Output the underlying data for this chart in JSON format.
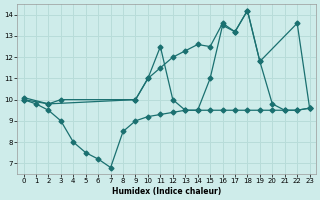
{
  "xlabel": "Humidex (Indice chaleur)",
  "bg_color": "#ceecea",
  "grid_color": "#b8dcd9",
  "line_color": "#1a7070",
  "ylim": [
    6.5,
    14.5
  ],
  "xlim": [
    -0.5,
    23.5
  ],
  "yticks": [
    7,
    8,
    9,
    10,
    11,
    12,
    13,
    14
  ],
  "xticks": [
    0,
    1,
    2,
    3,
    4,
    5,
    6,
    7,
    8,
    9,
    10,
    11,
    12,
    13,
    14,
    15,
    16,
    17,
    18,
    19,
    20,
    21,
    22,
    23
  ],
  "line1_x": [
    0,
    1,
    2,
    3,
    4,
    5,
    6,
    7,
    8,
    9,
    10,
    11,
    12,
    13,
    14,
    15,
    16,
    17,
    18,
    19,
    20,
    21,
    22,
    23
  ],
  "line1_y": [
    10.0,
    9.8,
    9.5,
    9.0,
    8.0,
    7.5,
    7.2,
    6.8,
    8.5,
    9.0,
    9.2,
    9.3,
    9.4,
    9.5,
    9.5,
    9.5,
    9.5,
    9.5,
    9.5,
    9.5,
    9.5,
    9.5,
    9.5,
    9.6
  ],
  "line2_x": [
    0,
    2,
    3,
    9,
    10,
    11,
    12,
    13,
    14,
    15,
    16,
    17,
    18,
    19,
    20,
    21,
    22,
    23
  ],
  "line2_y": [
    10.0,
    9.8,
    10.0,
    10.0,
    11.0,
    12.5,
    10.0,
    9.5,
    9.5,
    11.0,
    13.5,
    13.2,
    14.2,
    11.8,
    9.8,
    9.5,
    9.5,
    9.6
  ],
  "line3_x": [
    0,
    2,
    9,
    10,
    11,
    12,
    13,
    14,
    15,
    16,
    17,
    18,
    19,
    22,
    23
  ],
  "line3_y": [
    10.1,
    9.8,
    10.0,
    11.0,
    11.5,
    12.0,
    12.3,
    12.6,
    12.5,
    13.6,
    13.2,
    14.2,
    11.8,
    13.6,
    9.6
  ]
}
